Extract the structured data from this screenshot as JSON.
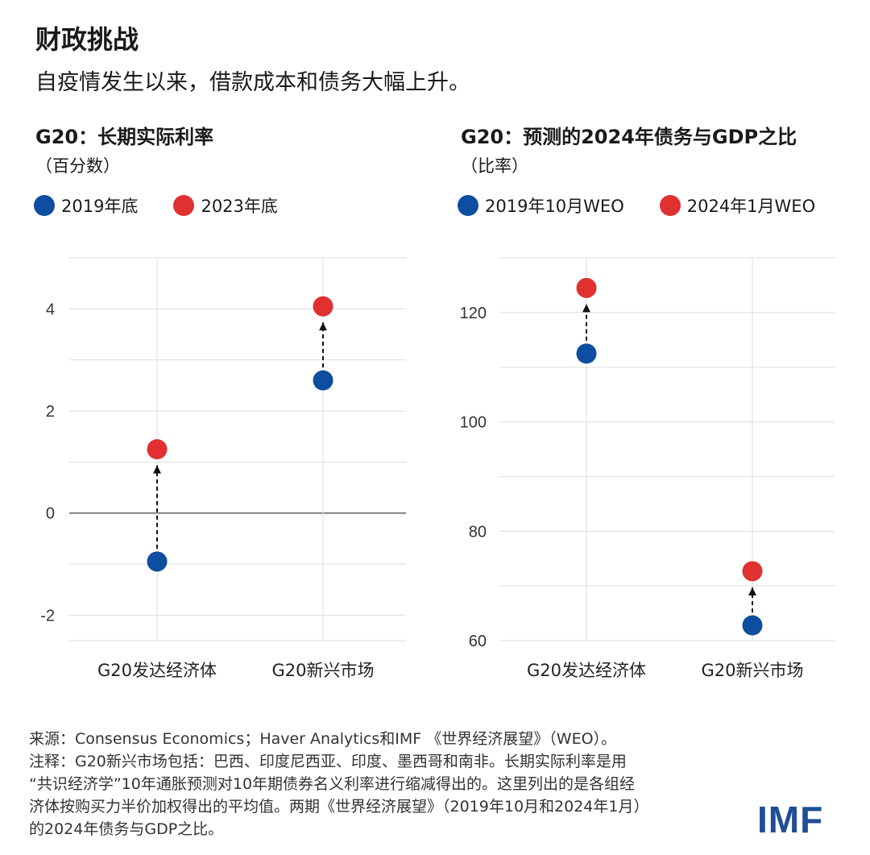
{
  "header": {
    "title": "财政挑战",
    "subtitle": "自疫情发生以来，借款成本和债务大幅上升。"
  },
  "colors": {
    "series_a": "#0d4ea0",
    "series_b": "#e03030",
    "grid": "#dddddd",
    "zero": "#666666"
  },
  "chart_data": [
    {
      "type": "scatter",
      "title": "G20：长期实际利率",
      "unit": "（百分数）",
      "categories": [
        "G20发达经济体",
        "G20新兴市场"
      ],
      "series": [
        {
          "name": "2019年底",
          "values": [
            -0.95,
            2.6
          ]
        },
        {
          "name": "2023年底",
          "values": [
            1.25,
            4.05
          ]
        }
      ],
      "ylim": [
        -2.5,
        5
      ],
      "yticks": [
        -2,
        0,
        2,
        4
      ],
      "ytick_labels": [
        "-2",
        "0",
        "2",
        "4"
      ],
      "grid": true,
      "legend": "top-left",
      "arrows": "dashed, from 2019年底 to 2023年底"
    },
    {
      "type": "scatter",
      "title": "G20：预测的2024年债务与GDP之比",
      "unit": "（比率）",
      "categories": [
        "G20发达经济体",
        "G20新兴市场"
      ],
      "series": [
        {
          "name": "2019年10月WEO",
          "values": [
            112.5,
            62.8
          ]
        },
        {
          "name": "2024年1月WEO",
          "values": [
            124.5,
            72.7
          ]
        }
      ],
      "ylim": [
        60,
        130
      ],
      "yticks": [
        60,
        80,
        100,
        120
      ],
      "ytick_labels": [
        "60",
        "80",
        "100",
        "120"
      ],
      "grid": true,
      "legend": "top-left",
      "arrows": "dashed, from 2019年10月WEO to 2024年1月WEO"
    }
  ],
  "notes": {
    "line1": "来源：Consensus Economics；Haver Analytics和IMF 《世界经济展望》（WEO）。",
    "line2": "注释：G20新兴市场包括：巴西、印度尼西亚、印度、墨西哥和南非。长期实际利率是用",
    "line3": "“共识经济学”10年通胀预测对10年期债券名义利率进行缩减得出的。这里列出的是各组经",
    "line4": "济体按购买力半价加权得出的平均值。两期《世界经济展望》（2019年10月和2024年1月）",
    "line5": "的2024年债务与GDP之比。"
  },
  "logo": "IMF"
}
